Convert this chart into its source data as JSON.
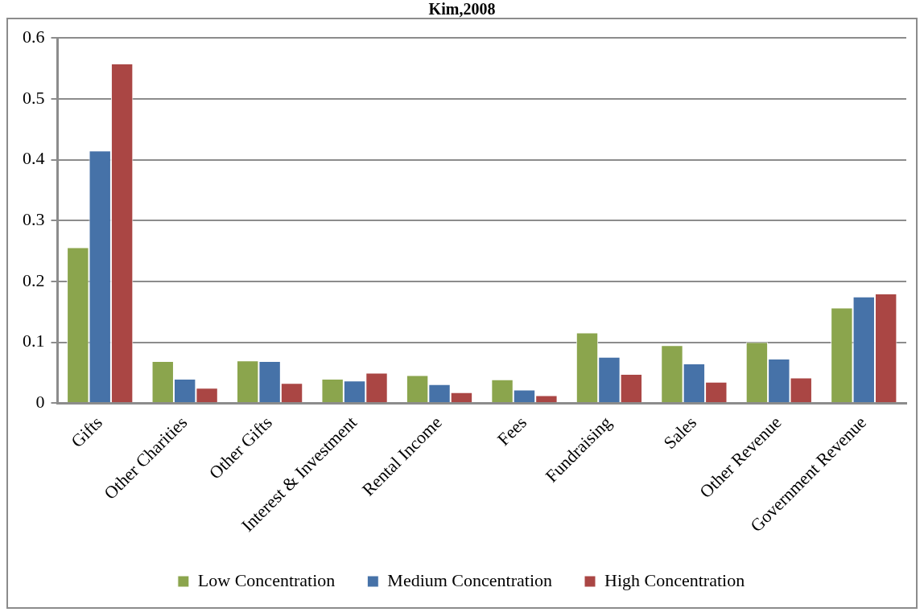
{
  "chart_data": {
    "type": "bar",
    "title": "Kim,2008",
    "categories": [
      "Gifts",
      "Other Charities",
      "Other Gifts",
      "Interest & Investment",
      "Rental Income",
      "Fees",
      "Fundraising",
      "Sales",
      "Other Revenue",
      "Government Revenue"
    ],
    "series": [
      {
        "name": "Low Concentration",
        "color": "#8ba54d",
        "values": [
          0.256,
          0.069,
          0.07,
          0.04,
          0.046,
          0.039,
          0.116,
          0.095,
          0.1,
          0.157
        ]
      },
      {
        "name": "Medium Concentration",
        "color": "#4672a8",
        "values": [
          0.415,
          0.04,
          0.069,
          0.037,
          0.031,
          0.022,
          0.076,
          0.065,
          0.073,
          0.175
        ]
      },
      {
        "name": "High Concentration",
        "color": "#aa4644",
        "values": [
          0.558,
          0.025,
          0.033,
          0.05,
          0.018,
          0.013,
          0.048,
          0.035,
          0.042,
          0.18
        ]
      }
    ],
    "ylim": [
      0,
      0.6
    ],
    "yticks": [
      0,
      0.1,
      0.2,
      0.3,
      0.4,
      0.5,
      0.6
    ],
    "grid": "y",
    "legend": "bottom"
  }
}
